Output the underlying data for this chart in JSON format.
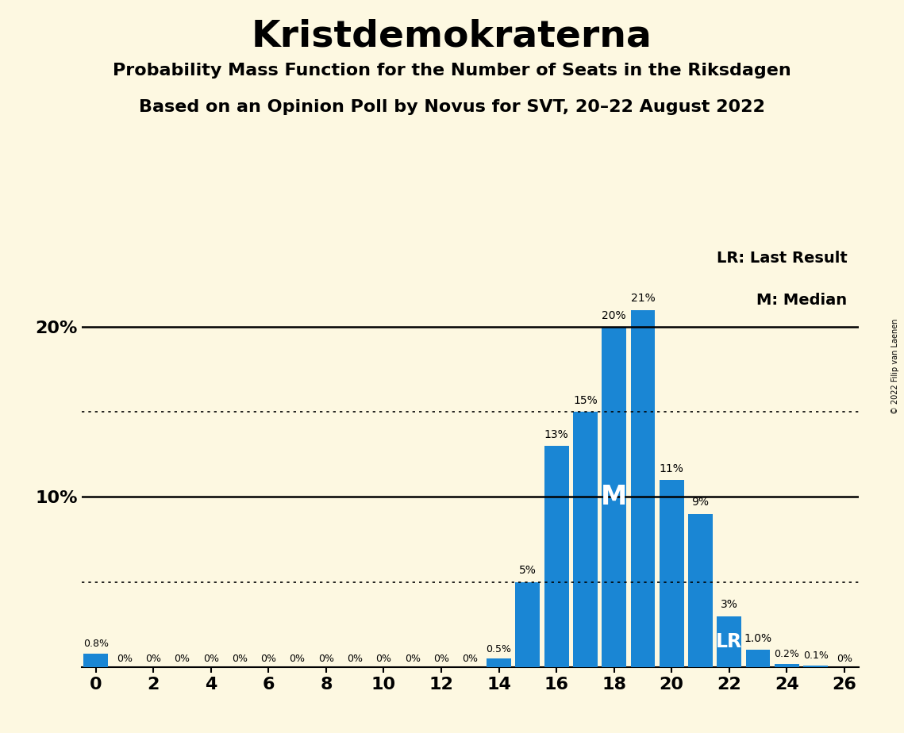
{
  "title": "Kristdemokraterna",
  "subtitle1": "Probability Mass Function for the Number of Seats in the Riksdagen",
  "subtitle2": "Based on an Opinion Poll by Novus for SVT, 20–22 August 2022",
  "copyright": "© 2022 Filip van Laenen",
  "background_color": "#fdf8e1",
  "bar_color": "#1a86d4",
  "seats": [
    0,
    1,
    2,
    3,
    4,
    5,
    6,
    7,
    8,
    9,
    10,
    11,
    12,
    13,
    14,
    15,
    16,
    17,
    18,
    19,
    20,
    21,
    22,
    23,
    24,
    25,
    26
  ],
  "probabilities": [
    0.8,
    0,
    0,
    0,
    0,
    0,
    0,
    0,
    0,
    0,
    0,
    0,
    0,
    0,
    0.5,
    5,
    13,
    15,
    20,
    21,
    11,
    9,
    3,
    1.0,
    0.2,
    0.1,
    0
  ],
  "labels": [
    "0.8%",
    "0%",
    "0%",
    "0%",
    "0%",
    "0%",
    "0%",
    "0%",
    "0%",
    "0%",
    "0%",
    "0%",
    "0%",
    "0%",
    "0.5%",
    "5%",
    "13%",
    "15%",
    "20%",
    "21%",
    "11%",
    "9%",
    "3%",
    "1.0%",
    "0.2%",
    "0.1%",
    "0%"
  ],
  "median_seat": 18,
  "lr_seat": 22,
  "solid_hlines": [
    10,
    20
  ],
  "dotted_hlines": [
    5,
    15
  ],
  "xlim": [
    -0.5,
    26.5
  ],
  "ylim": [
    0,
    25
  ],
  "xticks": [
    0,
    2,
    4,
    6,
    8,
    10,
    12,
    14,
    16,
    18,
    20,
    22,
    24,
    26
  ],
  "yticks_solid": [
    10,
    20
  ],
  "bar_width": 0.85
}
